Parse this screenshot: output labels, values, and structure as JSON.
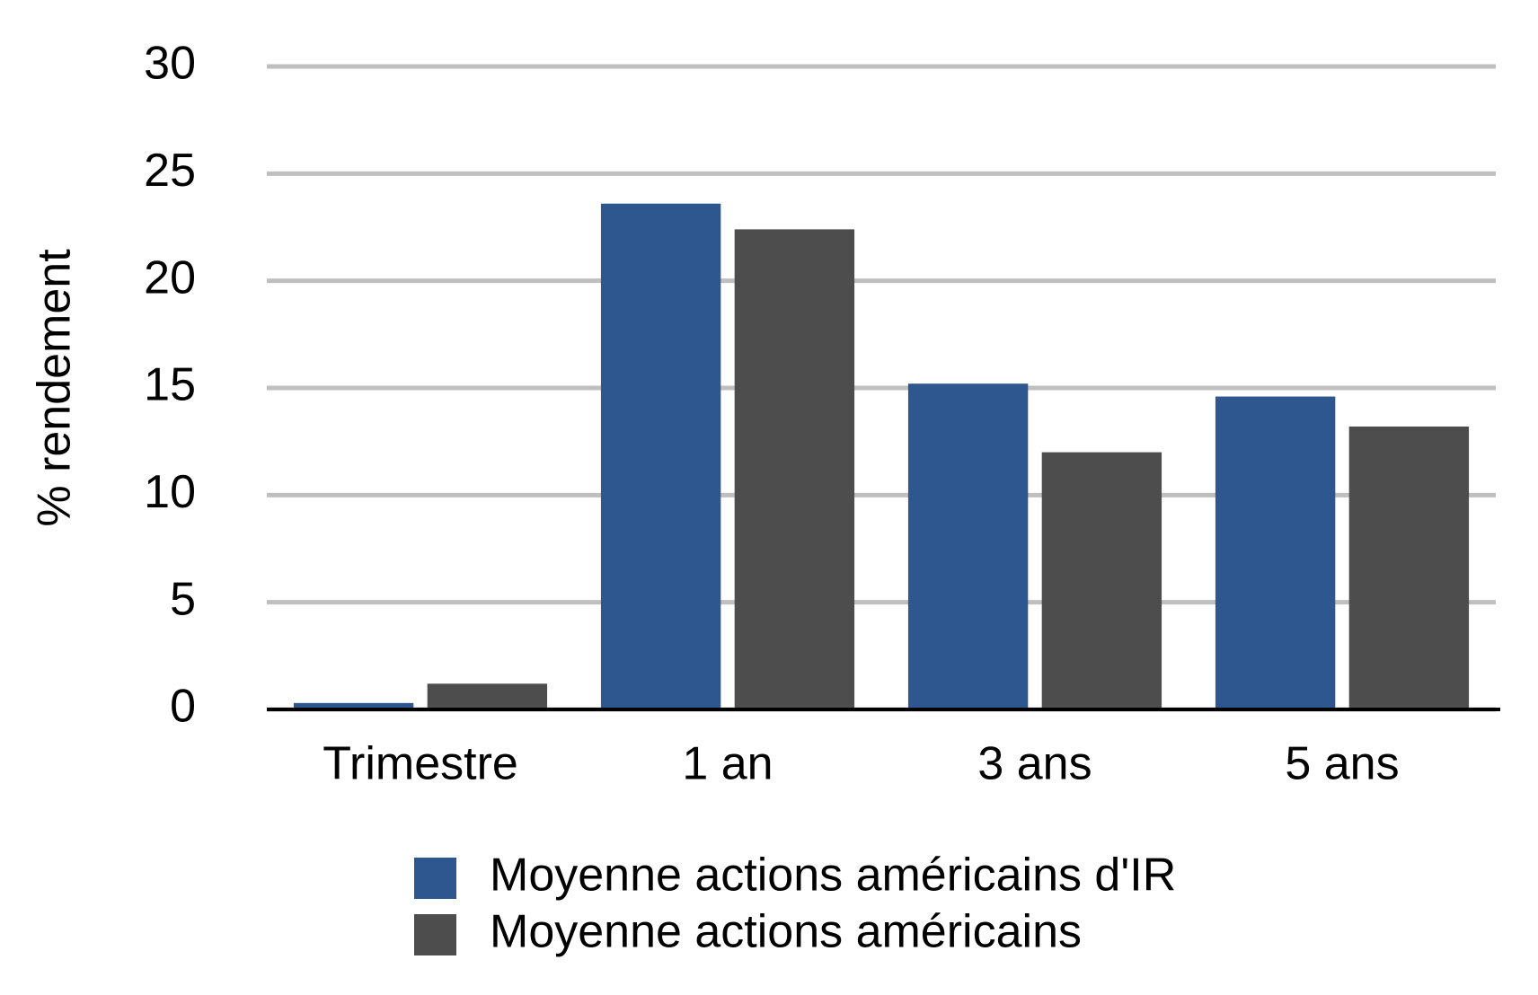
{
  "chart_data": {
    "type": "bar",
    "y_axis_label": "% rendement",
    "categories": [
      "Trimestre",
      "1 an",
      "3 ans",
      "5 ans"
    ],
    "series": [
      {
        "name": "Moyenne actions américains d'IR",
        "color": "#2e5790",
        "values": [
          0.3,
          23.6,
          15.2,
          14.6
        ]
      },
      {
        "name": "Moyenne actions américains",
        "color": "#4d4d4d",
        "values": [
          1.2,
          22.4,
          12.0,
          13.2
        ]
      }
    ],
    "ylim": [
      0,
      30
    ],
    "yticks": [
      0,
      5,
      10,
      15,
      20,
      25,
      30
    ],
    "grid": true,
    "legend": "bottom"
  }
}
